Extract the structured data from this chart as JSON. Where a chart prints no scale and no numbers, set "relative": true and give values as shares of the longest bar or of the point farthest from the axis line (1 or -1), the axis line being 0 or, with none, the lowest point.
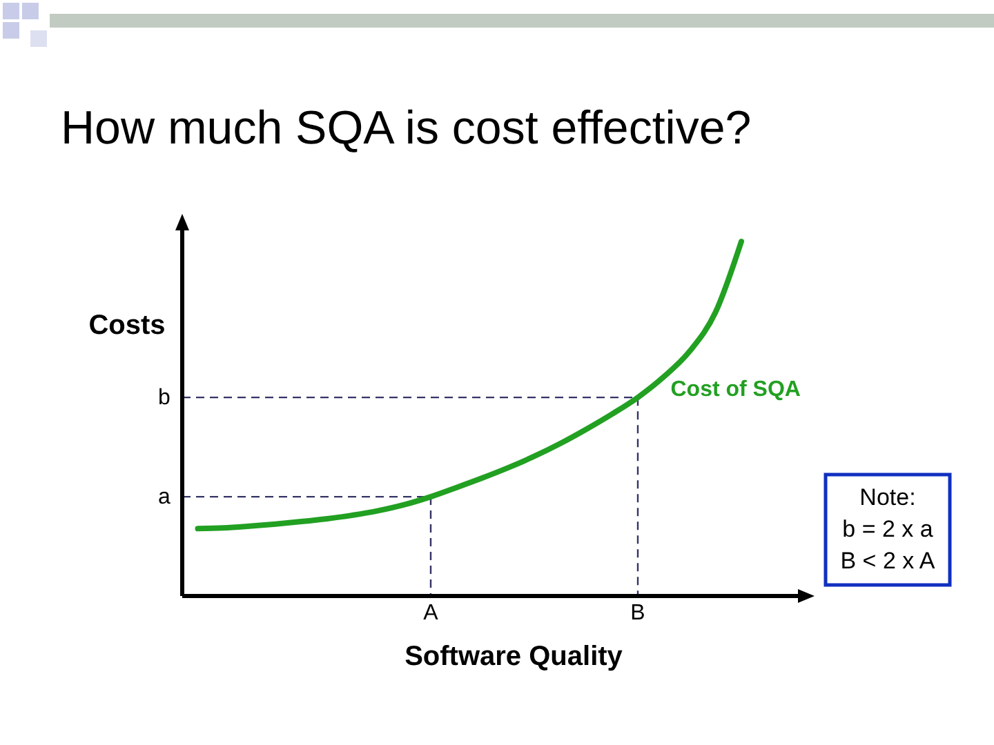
{
  "chart_data": {
    "type": "line",
    "title": "How much SQA is cost effective?",
    "xlabel": "Software Quality",
    "ylabel": "Costs",
    "relative": true,
    "categories": [
      null,
      null,
      null,
      null,
      null,
      null,
      null,
      null,
      null,
      "A",
      null,
      null,
      null,
      null,
      null,
      null,
      null,
      "B",
      null,
      null,
      null,
      null
    ],
    "series": [
      {
        "name": "Cost of SQA",
        "color": "#22a022",
        "values": [
          0.19,
          0.192,
          0.197,
          0.203,
          0.21,
          0.218,
          0.228,
          0.241,
          0.258,
          0.28,
          0.306,
          0.333,
          0.362,
          0.394,
          0.43,
          0.47,
          0.513,
          0.56,
          0.618,
          0.69,
          0.8,
          1.0
        ]
      }
    ],
    "ref_lines": [
      {
        "axis": "y",
        "value": 0.28,
        "label": "a",
        "color": "#333366",
        "line_style": "dashed"
      },
      {
        "axis": "y",
        "value": 0.56,
        "label": "b",
        "color": "#333366",
        "line_style": "dashed"
      }
    ],
    "annotations": [
      "Note:\nb = 2 x a\nB < 2 x A"
    ],
    "grid": false,
    "marker": "none",
    "line_style": "solid"
  }
}
